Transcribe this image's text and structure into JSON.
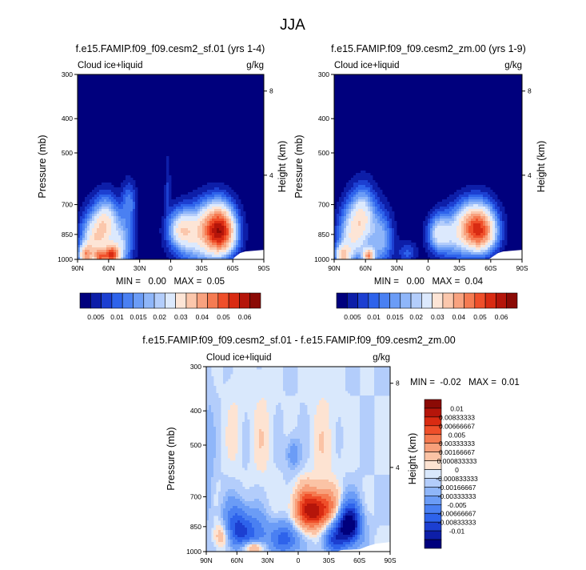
{
  "figure": {
    "title": "JJA"
  },
  "colors": {
    "frame": "#000000",
    "deep_blue": "#00007d",
    "pal_abs": [
      "#00007d",
      "#0d1ea8",
      "#1c3fd1",
      "#2e63eb",
      "#4a80f2",
      "#6b9cf6",
      "#8fb6f9",
      "#b3cdfb",
      "#dce9fd",
      "#fde5d6",
      "#fbc7ac",
      "#f8a27f",
      "#f57b52",
      "#ef4f2a",
      "#d92b12",
      "#b5150a",
      "#8b0a05"
    ],
    "pal_diff": [
      "#00007d",
      "#0d1ea8",
      "#1c3fd1",
      "#2e63eb",
      "#4a80f2",
      "#6b9cf6",
      "#8fb6f9",
      "#b3cdfb",
      "#d9e8fc",
      "#fde3d2",
      "#fbc3a5",
      "#f8a07b",
      "#f57a50",
      "#ef4f2a",
      "#d92b12",
      "#b5150a",
      "#8b0a05"
    ]
  },
  "panels": [
    {
      "title": "f.e15.FAMIP.f09_f09.cesm2_sf.01 (yrs 1-4)",
      "left_label": "Cloud ice+liquid",
      "right_label": "g/kg",
      "stats": "MIN =   0.00   MAX =  0.05"
    },
    {
      "title": "f.e15.FAMIP.f09_f09.cesm2_zm.00 (yrs 1-9)",
      "left_label": "Cloud ice+liquid",
      "right_label": "g/kg",
      "stats": "MIN =   0.00   MAX =  0.04"
    },
    {
      "title": "f.e15.FAMIP.f09_f09.cesm2_sf.01 - f.e15.FAMIP.f09_f09.cesm2_zm.00",
      "left_label": "Cloud ice+liquid",
      "right_label": "g/kg",
      "stats": "MIN =  -0.02   MAX =  0.01"
    }
  ],
  "chart_data": [
    {
      "type": "heatmap",
      "title": "f.e15.FAMIP.f09_f09.cesm2_sf.01 (yrs 1-4)",
      "xlabel": "",
      "ylabel": "Pressure (mb)",
      "y2label": "Height (km)",
      "x_ticks": [
        "90N",
        "60N",
        "30N",
        "0",
        "30S",
        "60S",
        "90S"
      ],
      "x_values": [
        90,
        60,
        30,
        0,
        -30,
        -60,
        -90
      ],
      "y_ticks": [
        "300",
        "400",
        "500",
        "700",
        "850",
        "1000"
      ],
      "y_values": [
        300,
        400,
        500,
        700,
        850,
        1000
      ],
      "y2_ticks": [
        "8",
        "4"
      ],
      "y2_values": [
        8,
        4
      ],
      "colorbar_labels": [
        "0.005",
        "0.01",
        "0.015",
        "0.02",
        "0.03",
        "0.04",
        "0.05",
        "0.06"
      ],
      "colorbar_levels": [
        0.0025,
        0.005,
        0.0075,
        0.01,
        0.0125,
        0.015,
        0.0175,
        0.02,
        0.025,
        0.03,
        0.035,
        0.04,
        0.045,
        0.05,
        0.055,
        0.06
      ],
      "min": 0.0,
      "max": 0.05,
      "features": [
        {
          "lat": 72,
          "p": 870,
          "sx": 10,
          "sp": 100,
          "amp": 0.028
        },
        {
          "lat": 62,
          "p": 760,
          "sx": 7,
          "sp": 75,
          "amp": 0.016
        },
        {
          "lat": 48,
          "p": 900,
          "sx": 8,
          "sp": 110,
          "amp": 0.018
        },
        {
          "lat": 40,
          "p": 690,
          "sx": 5,
          "sp": 65,
          "amp": 0.01
        },
        {
          "lat": 82,
          "p": 975,
          "sx": 5,
          "sp": 45,
          "amp": 0.03
        },
        {
          "lat": 57,
          "p": 975,
          "sx": 5,
          "sp": 40,
          "amp": 0.04
        },
        {
          "lat": 68,
          "p": 985,
          "sx": 4,
          "sp": 30,
          "amp": 0.03
        },
        {
          "lat": -10,
          "p": 820,
          "sx": 9,
          "sp": 70,
          "amp": 0.022
        },
        {
          "lat": -49,
          "p": 840,
          "sx": 10,
          "sp": 90,
          "amp": 0.042
        },
        {
          "lat": -38,
          "p": 790,
          "sx": 13,
          "sp": 80,
          "amp": 0.02
        },
        {
          "lat": -28,
          "p": 910,
          "sx": 16,
          "sp": 100,
          "amp": 0.016
        },
        {
          "lat": 3,
          "p": 620,
          "sx": 2,
          "sp": 90,
          "amp": 0.005
        }
      ]
    },
    {
      "type": "heatmap",
      "title": "f.e15.FAMIP.f09_f09.cesm2_zm.00 (yrs 1-9)",
      "xlabel": "",
      "ylabel": "Pressure (mb)",
      "y2label": "Height (km)",
      "x_ticks": [
        "90N",
        "60N",
        "30N",
        "0",
        "30S",
        "60S",
        "90S"
      ],
      "x_values": [
        90,
        60,
        30,
        0,
        -30,
        -60,
        -90
      ],
      "y_ticks": [
        "300",
        "400",
        "500",
        "700",
        "850",
        "1000"
      ],
      "y_values": [
        300,
        400,
        500,
        700,
        850,
        1000
      ],
      "y2_ticks": [
        "8",
        "4"
      ],
      "y2_values": [
        8,
        4
      ],
      "colorbar_labels": [
        "0.005",
        "0.01",
        "0.015",
        "0.02",
        "0.03",
        "0.04",
        "0.05",
        "0.06"
      ],
      "colorbar_levels": [
        0.0025,
        0.005,
        0.0075,
        0.01,
        0.0125,
        0.015,
        0.0175,
        0.02,
        0.025,
        0.03,
        0.035,
        0.04,
        0.045,
        0.05,
        0.055,
        0.06
      ],
      "min": 0.0,
      "max": 0.04,
      "features": [
        {
          "lat": 72,
          "p": 860,
          "sx": 10,
          "sp": 110,
          "amp": 0.024
        },
        {
          "lat": 62,
          "p": 740,
          "sx": 8,
          "sp": 85,
          "amp": 0.018
        },
        {
          "lat": 45,
          "p": 880,
          "sx": 8,
          "sp": 110,
          "amp": 0.016
        },
        {
          "lat": 82,
          "p": 975,
          "sx": 5,
          "sp": 45,
          "amp": 0.026
        },
        {
          "lat": 57,
          "p": 980,
          "sx": 4,
          "sp": 35,
          "amp": 0.032
        },
        {
          "lat": -10,
          "p": 840,
          "sx": 7,
          "sp": 65,
          "amp": 0.016
        },
        {
          "lat": -50,
          "p": 835,
          "sx": 11,
          "sp": 85,
          "amp": 0.04
        },
        {
          "lat": -40,
          "p": 780,
          "sx": 13,
          "sp": 75,
          "amp": 0.016
        },
        {
          "lat": -25,
          "p": 880,
          "sx": 14,
          "sp": 90,
          "amp": 0.014
        },
        {
          "lat": 20,
          "p": 960,
          "sx": 6,
          "sp": 50,
          "amp": 0.008
        }
      ]
    },
    {
      "type": "heatmap",
      "title": "f.e15.FAMIP.f09_f09.cesm2_sf.01 - f.e15.FAMIP.f09_f09.cesm2_zm.00",
      "xlabel": "",
      "ylabel": "Pressure (mb)",
      "y2label": "Height (km)",
      "x_ticks": [
        "90N",
        "60N",
        "30N",
        "0",
        "30S",
        "60S",
        "90S"
      ],
      "x_values": [
        90,
        60,
        30,
        0,
        -30,
        -60,
        -90
      ],
      "y_ticks": [
        "300",
        "400",
        "500",
        "700",
        "850",
        "1000"
      ],
      "y_values": [
        300,
        400,
        500,
        700,
        850,
        1000
      ],
      "y2_ticks": [
        "8",
        "4"
      ],
      "y2_values": [
        8,
        4
      ],
      "colorbar_labels": [
        "0.01",
        "0.00833333",
        "0.00666667",
        "0.005",
        "0.00333333",
        "0.00166667",
        "0.000833333",
        "0",
        "-0.000833333",
        "-0.00166667",
        "-0.00333333",
        "-0.005",
        "-0.00666667",
        "-0.00833333",
        "-0.01"
      ],
      "colorbar_levels": [
        -0.01,
        -0.00833333,
        -0.00666667,
        -0.005,
        -0.00333333,
        -0.00166667,
        -0.000833333,
        0,
        0.000833333,
        0.00166667,
        0.00333333,
        0.005,
        0.00666667,
        0.00833333,
        0.01
      ],
      "min": -0.02,
      "max": 0.01,
      "features": [
        {
          "lat": -14,
          "p": 770,
          "sx": 12,
          "sp": 65,
          "amp": 0.011
        },
        {
          "lat": -30,
          "p": 730,
          "sx": 8,
          "sp": 55,
          "amp": 0.003
        },
        {
          "lat": -50,
          "p": 840,
          "sx": 8,
          "sp": 80,
          "amp": -0.012
        },
        {
          "lat": -35,
          "p": 920,
          "sx": 8,
          "sp": 70,
          "amp": -0.006
        },
        {
          "lat": 60,
          "p": 860,
          "sx": 10,
          "sp": 90,
          "amp": -0.007
        },
        {
          "lat": 40,
          "p": 900,
          "sx": 10,
          "sp": 80,
          "amp": -0.004
        },
        {
          "lat": 12,
          "p": 920,
          "sx": 9,
          "sp": 70,
          "amp": -0.006
        },
        {
          "lat": 45,
          "p": 975,
          "sx": 8,
          "sp": 30,
          "amp": 0.006
        },
        {
          "lat": 75,
          "p": 900,
          "sx": 6,
          "sp": 60,
          "amp": 0.004
        },
        {
          "lat": 88,
          "p": 620,
          "sx": 4,
          "sp": 200,
          "amp": -0.0015
        },
        {
          "lat": 5,
          "p": 530,
          "sx": 5,
          "sp": 40,
          "amp": -0.003
        },
        {
          "lat": 35,
          "p": 480,
          "sx": 8,
          "sp": 120,
          "amp": 0.0012
        },
        {
          "lat": -25,
          "p": 500,
          "sx": 10,
          "sp": 140,
          "amp": 0.0012
        },
        {
          "lat": 62,
          "p": 450,
          "sx": 6,
          "sp": 100,
          "amp": 0.001
        },
        {
          "lat": -5,
          "p": 680,
          "sx": 6,
          "sp": 50,
          "amp": 0.0015
        }
      ]
    }
  ]
}
